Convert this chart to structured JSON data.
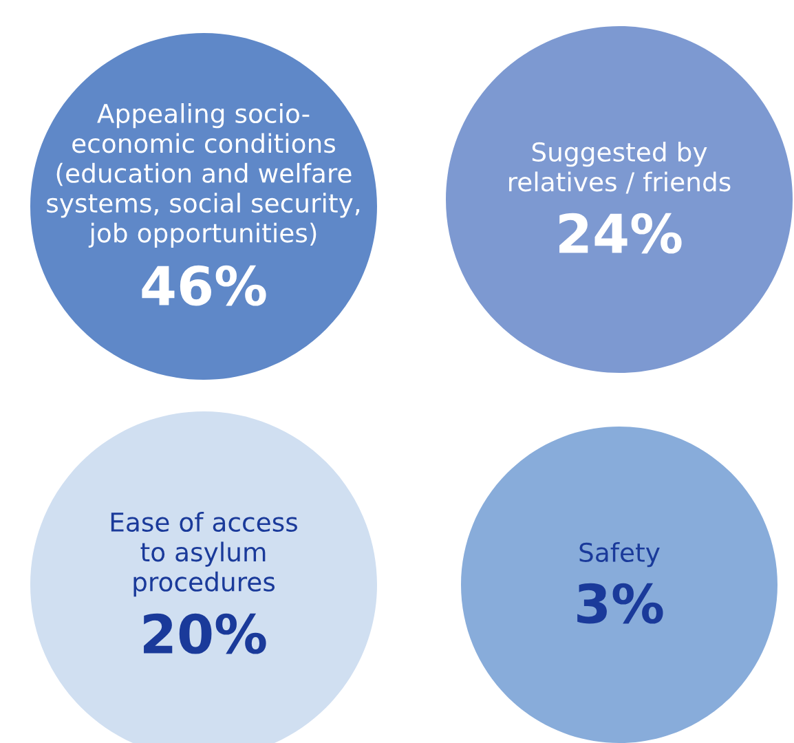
{
  "chart_data": {
    "type": "other",
    "categories": [
      "Appealing socio-\neconomic conditions\n(education and welfare\nsystems, social security,\njob opportunities)",
      "Suggested by\nrelatives / friends",
      "Ease of access\nto asylum\nprocedures",
      "Safety"
    ],
    "values": [
      46,
      24,
      20,
      3
    ],
    "value_labels": [
      "46%",
      "24%",
      "20%",
      "3%"
    ],
    "colors": [
      "#5f88c8",
      "#7d99d1",
      "#d0dff1",
      "#88acda"
    ]
  }
}
